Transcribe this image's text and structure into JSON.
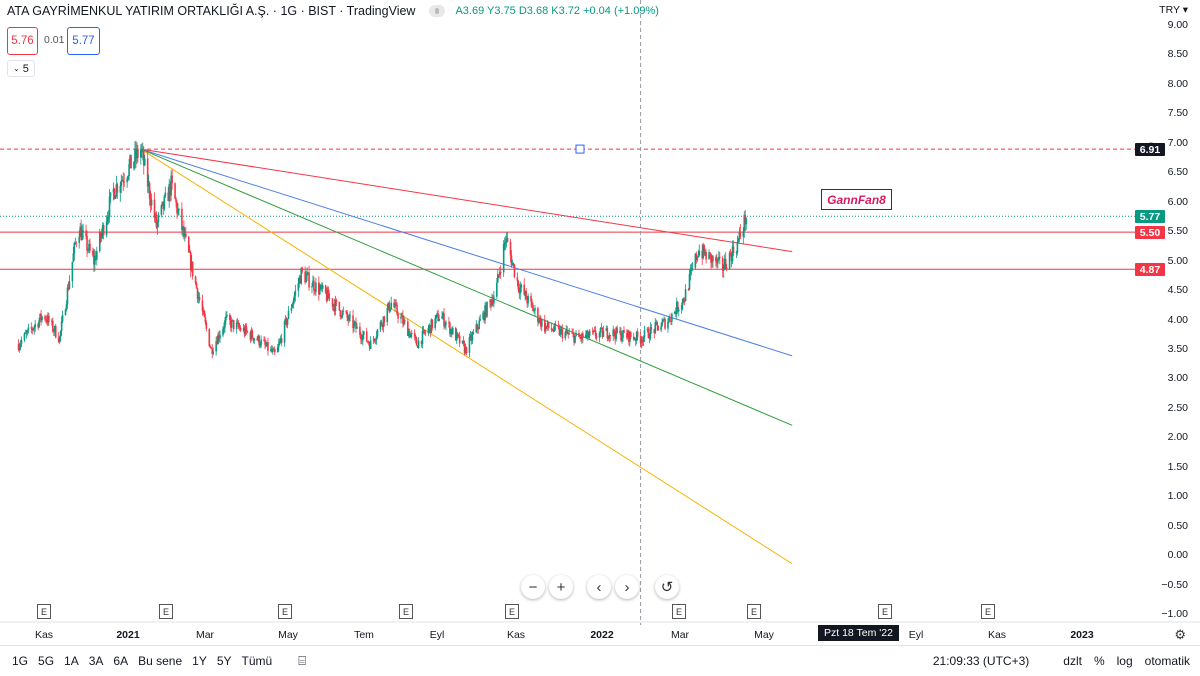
{
  "header": {
    "title": "ATA GAYRİMENKUL YATIRIM ORTAKLIĞI A.Ş. · 1G · BIST · TradingView",
    "ohlc": "A3.69  Y3.75  D3.68  K3.72  +0.04 (+1.09%)"
  },
  "trade": {
    "sell_price": "5.76",
    "spread": "0.01",
    "buy_price": "5.77",
    "volume_toggle": "5"
  },
  "currency": "TRY",
  "price_axis": [
    "9.00",
    "8.50",
    "8.00",
    "7.50",
    "7.00",
    "6.50",
    "6.00",
    "5.50",
    "5.00",
    "4.50",
    "4.00",
    "3.50",
    "3.00",
    "2.50",
    "2.00",
    "1.50",
    "1.00",
    "0.50",
    "0.00",
    "−0.50",
    "−1.00"
  ],
  "price_tags": [
    {
      "label": "6.91",
      "value": 6.91,
      "color": "#131722"
    },
    {
      "label": "5.77",
      "value": 5.77,
      "color": "#089981"
    },
    {
      "label": "5.50",
      "value": 5.5,
      "color": "#f23645"
    },
    {
      "label": "4.87",
      "value": 4.87,
      "color": "#f23645"
    }
  ],
  "time_axis": [
    {
      "label": "Kas",
      "bold": false
    },
    {
      "label": "2021",
      "bold": true
    },
    {
      "label": "Mar",
      "bold": false
    },
    {
      "label": "May",
      "bold": false
    },
    {
      "label": "Tem",
      "bold": false
    },
    {
      "label": "Eyl",
      "bold": false
    },
    {
      "label": "Kas",
      "bold": false
    },
    {
      "label": "2022",
      "bold": true
    },
    {
      "label": "Mar",
      "bold": false
    },
    {
      "label": "May",
      "bold": false
    },
    {
      "label": "Eyl",
      "bold": false
    },
    {
      "label": "Kas",
      "bold": false
    },
    {
      "label": "2023",
      "bold": true
    }
  ],
  "cursor_date": "Pzt 18 Tem '22",
  "earnings_marker": "E",
  "drawing_label": "GannFan8",
  "zoom_controls": {
    "minus": "−",
    "plus": "+",
    "back": "‹",
    "forward": "›",
    "reset": "↺"
  },
  "bottom_bar": {
    "intervals": [
      "1G",
      "5G",
      "1A",
      "3A",
      "6A",
      "Bu sene",
      "1Y",
      "5Y",
      "Tümü"
    ],
    "time": "21:09:33 (UTC+3)",
    "options": [
      "dzlt",
      "%",
      "log",
      "otomatik"
    ]
  },
  "chart_data": {
    "type": "candlestick",
    "title": "ATA GAYRİMENKUL YATIRIM ORTAKLIĞI A.Ş. · 1G · BIST",
    "ylabel": "TRY",
    "ylim": [
      -1.0,
      9.0
    ],
    "x_range": [
      "2020-10",
      "2023-01"
    ],
    "price_path": [
      {
        "date": "2020-10-20",
        "close": 3.6
      },
      {
        "date": "2020-11-15",
        "close": 4.1
      },
      {
        "date": "2020-12-01",
        "close": 3.7
      },
      {
        "date": "2020-12-20",
        "close": 5.6
      },
      {
        "date": "2021-01-05",
        "close": 5.0
      },
      {
        "date": "2021-01-25",
        "close": 6.2
      },
      {
        "date": "2021-02-22",
        "close": 6.9
      },
      {
        "date": "2021-03-10",
        "close": 5.6
      },
      {
        "date": "2021-03-25",
        "close": 6.3
      },
      {
        "date": "2021-04-15",
        "close": 4.9
      },
      {
        "date": "2021-05-05",
        "close": 3.5
      },
      {
        "date": "2021-05-20",
        "close": 4.0
      },
      {
        "date": "2021-06-20",
        "close": 3.7
      },
      {
        "date": "2021-07-10",
        "close": 3.4
      },
      {
        "date": "2021-08-05",
        "close": 4.8
      },
      {
        "date": "2021-09-01",
        "close": 4.4
      },
      {
        "date": "2021-10-15",
        "close": 3.6
      },
      {
        "date": "2021-11-05",
        "close": 4.3
      },
      {
        "date": "2021-12-01",
        "close": 3.6
      },
      {
        "date": "2021-12-25",
        "close": 4.1
      },
      {
        "date": "2022-01-20",
        "close": 3.5
      },
      {
        "date": "2022-02-20",
        "close": 4.5
      },
      {
        "date": "2022-03-02",
        "close": 5.4
      },
      {
        "date": "2022-03-15",
        "close": 4.6
      },
      {
        "date": "2022-04-10",
        "close": 3.9
      },
      {
        "date": "2022-05-15",
        "close": 3.7
      },
      {
        "date": "2022-06-15",
        "close": 3.8
      },
      {
        "date": "2022-07-18",
        "close": 3.7
      },
      {
        "date": "2022-08-15",
        "close": 4.0
      },
      {
        "date": "2022-09-01",
        "close": 4.4
      },
      {
        "date": "2022-09-15",
        "close": 5.2
      },
      {
        "date": "2022-10-10",
        "close": 4.9
      },
      {
        "date": "2022-10-25",
        "close": 5.3
      },
      {
        "date": "2022-11-03",
        "close": 5.77
      }
    ],
    "horizontal_lines": [
      6.91,
      5.5,
      4.87
    ],
    "last_price": 5.77,
    "gann_fan": {
      "origin": {
        "date": "2021-02-22",
        "price": 6.91
      },
      "lines": [
        {
          "color": "#f23645",
          "end_price": 5.17
        },
        {
          "color": "#4c7ee8",
          "end_price": 3.4
        },
        {
          "color": "#2e9e3a",
          "end_price": 2.22
        },
        {
          "color": "#f5b400",
          "end_price": -0.13
        }
      ],
      "end_date": "2022-12-20"
    }
  }
}
